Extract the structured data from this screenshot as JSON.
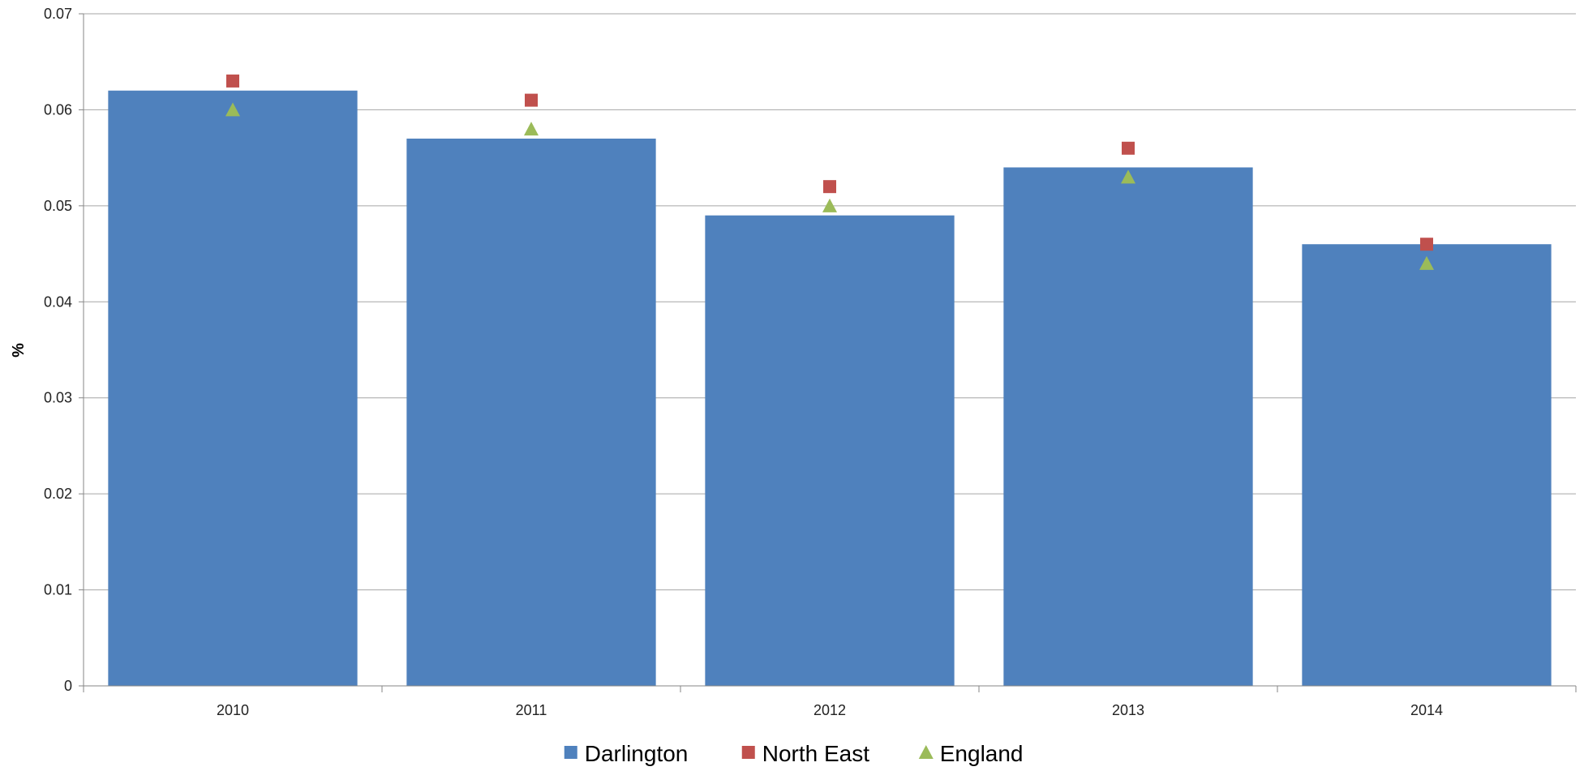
{
  "chart_data": {
    "type": "bar",
    "title": "",
    "xlabel": "",
    "ylabel": "%",
    "categories": [
      "2010",
      "2011",
      "2012",
      "2013",
      "2014"
    ],
    "ylim": [
      0,
      0.07
    ],
    "yticks": [
      "0",
      "0.01",
      "0.02",
      "0.03",
      "0.04",
      "0.05",
      "0.06",
      "0.07"
    ],
    "grid": true,
    "legend_position": "bottom",
    "series": [
      {
        "name": "Darlington",
        "kind": "bar",
        "marker": "square",
        "color": "#4F81BD",
        "values": [
          0.062,
          0.057,
          0.049,
          0.054,
          0.046
        ]
      },
      {
        "name": "North East",
        "kind": "marker",
        "marker": "square",
        "color": "#C0504D",
        "values": [
          0.063,
          0.061,
          0.052,
          0.056,
          0.046
        ]
      },
      {
        "name": "England",
        "kind": "marker",
        "marker": "triangle",
        "color": "#9BBB59",
        "values": [
          0.06,
          0.058,
          0.05,
          0.053,
          0.044
        ]
      }
    ]
  }
}
